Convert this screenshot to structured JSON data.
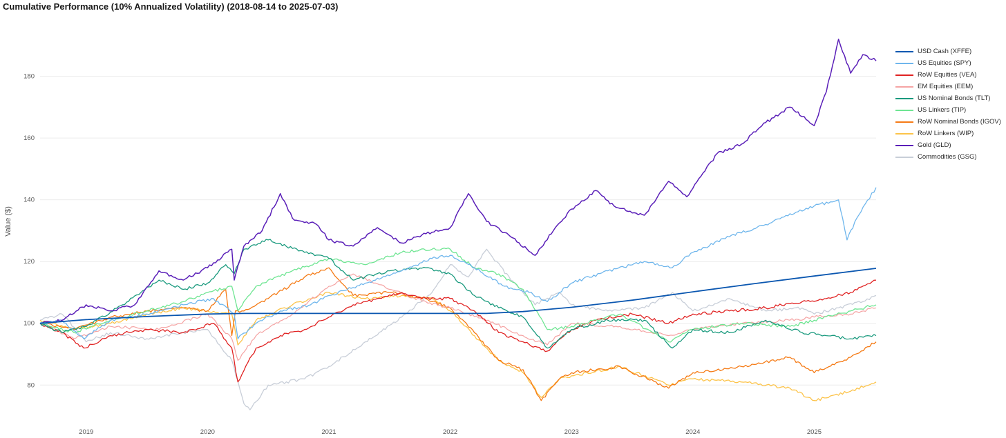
{
  "chart_data": {
    "type": "line",
    "title": "Cumulative Performance (10% Annualized Volatility)  (2018-08-14 to 2025-07-03)",
    "xlabel": "",
    "ylabel": "Value ($)",
    "ylim": [
      68,
      198
    ],
    "xlim": [
      2018.62,
      2025.51
    ],
    "yticks": [
      80,
      100,
      120,
      140,
      160,
      180
    ],
    "xticks": [
      "2019",
      "2020",
      "2021",
      "2022",
      "2023",
      "2024",
      "2025"
    ],
    "xtick_positions": [
      2019,
      2020,
      2021,
      2022,
      2023,
      2024,
      2025
    ],
    "grid": true,
    "legend_position": "right",
    "series": [
      {
        "name": "USD Cash (XFFE)",
        "color": "#0b57b0",
        "width": 1.8,
        "x": [
          2018.62,
          2019.0,
          2019.5,
          2020.0,
          2020.3,
          2021.0,
          2021.5,
          2022.0,
          2022.3,
          2022.6,
          2023.0,
          2023.5,
          2024.0,
          2024.5,
          2025.0,
          2025.51
        ],
        "values": [
          100,
          101.2,
          102.2,
          103.0,
          103.2,
          103.2,
          103.2,
          103.2,
          103.2,
          103.8,
          105.2,
          107.5,
          110.2,
          112.8,
          115.3,
          117.8
        ]
      },
      {
        "name": "US Equities (SPY)",
        "color": "#6fb6ec",
        "width": 1.3,
        "x": [
          2018.62,
          2018.8,
          2018.98,
          2019.2,
          2019.5,
          2019.8,
          2020.05,
          2020.22,
          2020.25,
          2020.4,
          2020.6,
          2020.85,
          2021.0,
          2021.3,
          2021.6,
          2021.85,
          2022.0,
          2022.2,
          2022.45,
          2022.65,
          2022.8,
          2023.0,
          2023.3,
          2023.6,
          2023.83,
          2024.0,
          2024.3,
          2024.6,
          2024.85,
          2025.0,
          2025.2,
          2025.27,
          2025.35,
          2025.51
        ],
        "values": [
          100,
          101,
          95,
          101,
          103,
          106,
          108,
          103,
          95,
          100,
          104,
          106,
          109,
          113,
          117,
          121,
          122,
          118,
          112,
          110,
          107,
          113,
          117,
          120,
          118,
          123,
          128,
          132,
          136,
          138,
          140,
          127,
          134,
          144
        ]
      },
      {
        "name": "RoW Equities (VEA)",
        "color": "#e02121",
        "width": 1.3,
        "x": [
          2018.62,
          2018.8,
          2018.98,
          2019.2,
          2019.5,
          2019.8,
          2020.05,
          2020.2,
          2020.25,
          2020.4,
          2020.6,
          2020.8,
          2021.0,
          2021.2,
          2021.4,
          2021.6,
          2021.8,
          2022.0,
          2022.2,
          2022.4,
          2022.6,
          2022.8,
          2023.0,
          2023.2,
          2023.5,
          2023.8,
          2024.0,
          2024.3,
          2024.6,
          2024.9,
          2025.1,
          2025.3,
          2025.51
        ],
        "values": [
          100,
          97,
          92,
          96,
          98,
          97,
          100,
          92,
          81,
          92,
          96,
          98,
          102,
          106,
          108,
          110,
          108,
          108,
          104,
          97,
          94,
          91,
          98,
          101,
          103,
          100,
          103,
          104,
          105,
          107,
          108,
          110,
          114
        ]
      },
      {
        "name": "EM Equities (EEM)",
        "color": "#f5a3a3",
        "width": 1.2,
        "x": [
          2018.62,
          2018.9,
          2019.2,
          2019.6,
          2020.0,
          2020.2,
          2020.25,
          2020.4,
          2020.7,
          2021.0,
          2021.2,
          2021.5,
          2021.8,
          2022.0,
          2022.3,
          2022.6,
          2022.8,
          2023.0,
          2023.4,
          2023.8,
          2024.0,
          2024.4,
          2024.8,
          2025.0,
          2025.3,
          2025.51
        ],
        "values": [
          100,
          95,
          99,
          98,
          103,
          95,
          88,
          96,
          103,
          112,
          116,
          111,
          107,
          105,
          101,
          96,
          93,
          100,
          99,
          96,
          98,
          100,
          101,
          102,
          103,
          105
        ]
      },
      {
        "name": "US Nominal Bonds (TLT)",
        "color": "#1a9a7e",
        "width": 1.3,
        "x": [
          2018.62,
          2018.8,
          2019.0,
          2019.3,
          2019.6,
          2019.8,
          2020.0,
          2020.15,
          2020.22,
          2020.3,
          2020.5,
          2020.8,
          2021.0,
          2021.2,
          2021.5,
          2021.8,
          2022.0,
          2022.2,
          2022.4,
          2022.6,
          2022.8,
          2023.0,
          2023.3,
          2023.6,
          2023.83,
          2024.0,
          2024.3,
          2024.6,
          2024.9,
          2025.1,
          2025.3,
          2025.51
        ],
        "values": [
          100,
          97,
          99,
          106,
          114,
          111,
          113,
          119,
          116,
          124,
          127,
          123,
          121,
          114,
          117,
          118,
          116,
          109,
          105,
          102,
          92,
          98,
          101,
          101,
          92,
          98,
          97,
          101,
          97,
          96,
          95,
          96
        ]
      },
      {
        "name": "US Linkers (TIP)",
        "color": "#6ee592",
        "width": 1.3,
        "x": [
          2018.62,
          2018.9,
          2019.2,
          2019.5,
          2019.8,
          2020.0,
          2020.2,
          2020.25,
          2020.4,
          2020.7,
          2021.0,
          2021.3,
          2021.6,
          2021.85,
          2022.0,
          2022.2,
          2022.4,
          2022.6,
          2022.8,
          2023.0,
          2023.4,
          2023.8,
          2024.0,
          2024.4,
          2024.8,
          2025.0,
          2025.3,
          2025.51
        ],
        "values": [
          100,
          97,
          101,
          104,
          107,
          110,
          112,
          104,
          112,
          117,
          121,
          119,
          123,
          124,
          124,
          118,
          116,
          111,
          98,
          99,
          103,
          94,
          98,
          100,
          99,
          101,
          104,
          106
        ]
      },
      {
        "name": "RoW Nominal Bonds (IGOV)",
        "color": "#f57a14",
        "width": 1.3,
        "x": [
          2018.62,
          2018.9,
          2019.2,
          2019.5,
          2019.8,
          2020.0,
          2020.15,
          2020.2,
          2020.23,
          2020.3,
          2020.5,
          2020.8,
          2021.0,
          2021.2,
          2021.5,
          2021.8,
          2022.0,
          2022.2,
          2022.4,
          2022.6,
          2022.75,
          2022.9,
          2023.0,
          2023.4,
          2023.8,
          2024.0,
          2024.4,
          2024.8,
          2025.0,
          2025.3,
          2025.51
        ],
        "values": [
          100,
          98,
          102,
          104,
          105,
          104,
          111,
          96,
          104,
          104,
          108,
          115,
          118,
          109,
          110,
          108,
          105,
          97,
          88,
          85,
          75,
          82,
          84,
          86,
          79,
          84,
          86,
          89,
          84,
          89,
          94
        ]
      },
      {
        "name": "RoW Linkers (WIP)",
        "color": "#fcc349",
        "width": 1.3,
        "x": [
          2018.62,
          2018.9,
          2019.2,
          2019.5,
          2019.8,
          2020.0,
          2020.2,
          2020.25,
          2020.4,
          2020.7,
          2021.0,
          2021.3,
          2021.6,
          2021.85,
          2022.0,
          2022.2,
          2022.4,
          2022.6,
          2022.75,
          2022.9,
          2023.0,
          2023.4,
          2023.8,
          2024.0,
          2024.4,
          2024.8,
          2025.0,
          2025.3,
          2025.51
        ],
        "values": [
          101,
          98,
          100,
          103,
          105,
          104,
          103,
          93,
          101,
          106,
          110,
          108,
          109,
          108,
          104,
          96,
          88,
          84,
          76,
          82,
          83,
          86,
          80,
          82,
          81,
          79,
          75,
          78,
          81
        ]
      },
      {
        "name": "Gold (GLD)",
        "color": "#5a1fb8",
        "width": 1.5,
        "x": [
          2018.62,
          2018.8,
          2019.0,
          2019.2,
          2019.4,
          2019.6,
          2019.8,
          2020.0,
          2020.2,
          2020.22,
          2020.3,
          2020.45,
          2020.6,
          2020.7,
          2020.9,
          2021.0,
          2021.2,
          2021.4,
          2021.6,
          2021.8,
          2022.0,
          2022.15,
          2022.3,
          2022.5,
          2022.7,
          2022.85,
          2023.0,
          2023.2,
          2023.35,
          2023.6,
          2023.8,
          2023.95,
          2024.2,
          2024.4,
          2024.6,
          2024.8,
          2025.0,
          2025.1,
          2025.2,
          2025.3,
          2025.4,
          2025.51
        ],
        "values": [
          100,
          101,
          106,
          104,
          106,
          117,
          114,
          118,
          124,
          114,
          125,
          130,
          142,
          134,
          132,
          127,
          125,
          131,
          126,
          129,
          131,
          142,
          133,
          128,
          122,
          130,
          137,
          143,
          138,
          135,
          146,
          141,
          155,
          158,
          165,
          170,
          164,
          175,
          192,
          181,
          187,
          185
        ]
      },
      {
        "name": "Commodities (GSG)",
        "color": "#c8ced8",
        "width": 1.3,
        "x": [
          2018.62,
          2018.8,
          2019.0,
          2019.2,
          2019.5,
          2019.8,
          2020.0,
          2020.2,
          2020.3,
          2020.35,
          2020.5,
          2020.8,
          2021.0,
          2021.3,
          2021.6,
          2021.85,
          2022.0,
          2022.15,
          2022.3,
          2022.5,
          2022.7,
          2022.9,
          2023.0,
          2023.3,
          2023.6,
          2023.83,
          2024.0,
          2024.3,
          2024.6,
          2024.9,
          2025.0,
          2025.2,
          2025.4,
          2025.51
        ],
        "values": [
          101,
          103,
          94,
          97,
          95,
          97,
          98,
          88,
          74,
          72,
          80,
          82,
          86,
          94,
          102,
          110,
          119,
          115,
          124,
          114,
          106,
          110,
          106,
          104,
          105,
          110,
          104,
          108,
          104,
          105,
          103,
          105,
          107,
          109
        ]
      }
    ]
  }
}
